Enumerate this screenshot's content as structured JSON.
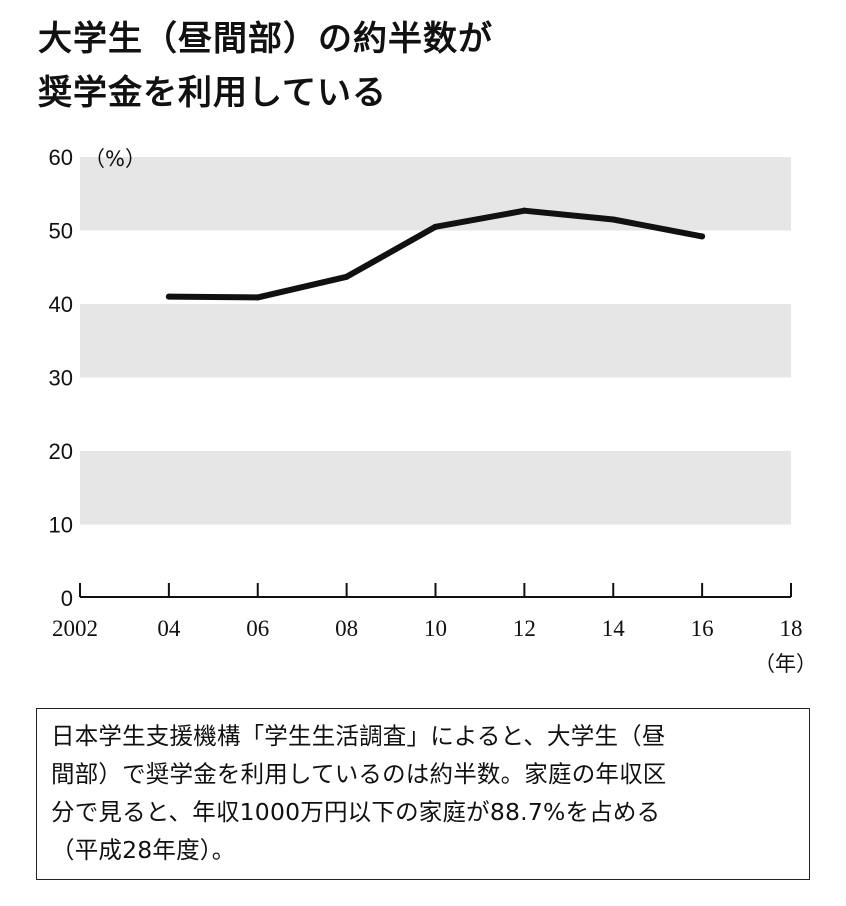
{
  "title_lines": [
    "大学生（昼間部）の約半数が",
    "奨学金を利用している"
  ],
  "chart_data": {
    "type": "line",
    "title": "大学生（昼間部）の約半数が奨学金を利用している",
    "ylabel": "（%）",
    "xlabel": "（年）",
    "x": [
      2004,
      2006,
      2008,
      2010,
      2012,
      2014,
      2016
    ],
    "series": [
      {
        "values": [
          41.0,
          40.9,
          43.7,
          50.5,
          52.7,
          51.5,
          49.2
        ]
      }
    ],
    "xlim": [
      2002,
      2018
    ],
    "ylim": [
      0,
      60
    ],
    "y_ticks": [
      0,
      10,
      20,
      30,
      40,
      50,
      60
    ],
    "x_ticks": [
      {
        "value": 2002,
        "label": "2002"
      },
      {
        "value": 2004,
        "label": "04"
      },
      {
        "value": 2006,
        "label": "06"
      },
      {
        "value": 2008,
        "label": "08"
      },
      {
        "value": 2010,
        "label": "10"
      },
      {
        "value": 2012,
        "label": "12"
      },
      {
        "value": 2014,
        "label": "14"
      },
      {
        "value": 2016,
        "label": "16"
      },
      {
        "value": 2018,
        "label": "18"
      }
    ],
    "grid": "alternating gray horizontal bands",
    "line_color": "#111111",
    "band_color": "#e6e6e6"
  },
  "note_lines": [
    "日本学生支援機構「学生生活調査」によると、大学生（昼",
    "間部）で奨学金を利用しているのは約半数。家庭の年収区",
    "分で見ると、年収1000万円以下の家庭が88.7%を占める",
    "（平成28年度）。"
  ]
}
